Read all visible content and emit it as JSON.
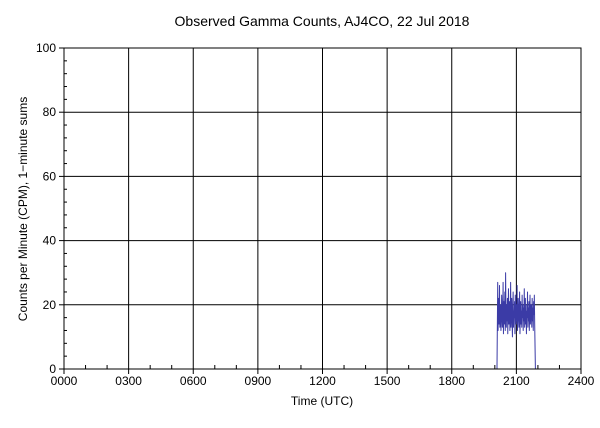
{
  "chart_data": {
    "type": "line",
    "title": "Observed Gamma Counts, AJ4CO, 22 Jul 2018",
    "xlabel": "Time (UTC)",
    "ylabel": "Counts per Minute (CPM), 1−minute sums",
    "xlim": [
      0,
      1440
    ],
    "ylim": [
      0,
      100
    ],
    "x_ticks": [
      {
        "value": 0,
        "label": "0000"
      },
      {
        "value": 180,
        "label": "0300"
      },
      {
        "value": 360,
        "label": "0600"
      },
      {
        "value": 540,
        "label": "0900"
      },
      {
        "value": 720,
        "label": "1200"
      },
      {
        "value": 900,
        "label": "1500"
      },
      {
        "value": 1080,
        "label": "1800"
      },
      {
        "value": 1260,
        "label": "2100"
      },
      {
        "value": 1440,
        "label": "2400"
      }
    ],
    "y_ticks": [
      {
        "value": 0,
        "label": "0"
      },
      {
        "value": 20,
        "label": "20"
      },
      {
        "value": 40,
        "label": "40"
      },
      {
        "value": 60,
        "label": "60"
      },
      {
        "value": 80,
        "label": "80"
      },
      {
        "value": 100,
        "label": "100"
      }
    ],
    "grid": true,
    "series": [
      {
        "color": "#3b3ba6",
        "x": [
          1203,
          1206,
          1208,
          1209,
          1210,
          1211,
          1212,
          1213,
          1214,
          1215,
          1216,
          1217,
          1218,
          1219,
          1220,
          1221,
          1222,
          1223,
          1224,
          1225,
          1226,
          1227,
          1228,
          1229,
          1230,
          1231,
          1232,
          1233,
          1234,
          1235,
          1236,
          1237,
          1238,
          1239,
          1240,
          1241,
          1242,
          1243,
          1244,
          1245,
          1246,
          1247,
          1248,
          1249,
          1250,
          1251,
          1252,
          1253,
          1254,
          1255,
          1256,
          1257,
          1258,
          1259,
          1260,
          1261,
          1262,
          1263,
          1264,
          1265,
          1266,
          1267,
          1268,
          1269,
          1270,
          1271,
          1272,
          1273,
          1274,
          1275,
          1276,
          1277,
          1278,
          1279,
          1280,
          1281,
          1282,
          1283,
          1284,
          1285,
          1286,
          1287,
          1288,
          1289,
          1290,
          1291,
          1292,
          1293,
          1294,
          1295,
          1296,
          1297,
          1298,
          1299,
          1300,
          1301,
          1302,
          1303,
          1304,
          1305,
          1306,
          1307,
          1308,
          1309,
          1310,
          1311,
          1313
        ],
        "y": [
          0,
          0,
          27,
          12,
          18,
          22,
          14,
          26,
          13,
          17,
          20,
          12,
          15,
          23,
          19,
          13,
          16,
          27,
          11,
          21,
          14,
          18,
          24,
          12,
          30,
          17,
          13,
          20,
          15,
          22,
          11,
          18,
          25,
          14,
          16,
          21,
          12,
          19,
          27,
          13,
          17,
          22,
          15,
          10,
          19,
          24,
          13,
          18,
          16,
          21,
          11,
          23,
          17,
          14,
          20,
          15,
          26,
          12,
          18,
          22,
          16,
          13,
          19,
          24,
          11,
          17,
          21,
          14,
          18,
          13,
          23,
          16,
          20,
          12,
          19,
          15,
          25,
          13,
          17,
          22,
          14,
          18,
          11,
          20,
          16,
          24,
          13,
          19,
          15,
          21,
          12,
          18,
          23,
          14,
          17,
          20,
          16,
          13,
          22,
          15,
          19,
          12,
          21,
          17,
          23,
          14,
          0
        ]
      }
    ]
  }
}
